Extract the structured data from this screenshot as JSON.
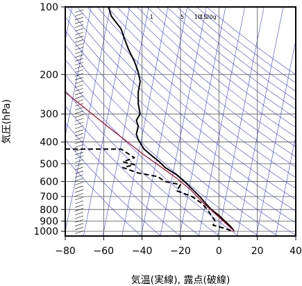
{
  "chart_data": {
    "type": "line",
    "title": "",
    "xlabel": "気温(実線), 露点(破線)",
    "ylabel": "気圧(hPa)",
    "xlim": [
      -80,
      40
    ],
    "ylim": [
      1050,
      100
    ],
    "y_scale": "log",
    "x_ticks": [
      -80,
      -60,
      -40,
      -20,
      0,
      20,
      40
    ],
    "x_tick_labels": [
      "−80",
      "−60",
      "−40",
      "−20",
      "0",
      "20",
      "40"
    ],
    "y_ticks": [
      100,
      200,
      300,
      400,
      500,
      600,
      700,
      800,
      900,
      1000
    ],
    "y_tick_labels": [
      "100",
      "200",
      "300",
      "400",
      "500",
      "600",
      "700",
      "800",
      "900",
      "1000"
    ],
    "mixing_ratio_labels": [
      "1",
      "5",
      "10",
      "15",
      "20g"
    ],
    "grid": true,
    "series": [
      {
        "style": "solid",
        "color": "#000000",
        "points": [
          {
            "t": -57.5,
            "p": 100
          },
          {
            "t": -56,
            "p": 110
          },
          {
            "t": -51,
            "p": 125
          },
          {
            "t": -49,
            "p": 140
          },
          {
            "t": -47,
            "p": 155
          },
          {
            "t": -44,
            "p": 175
          },
          {
            "t": -42,
            "p": 195
          },
          {
            "t": -41,
            "p": 215
          },
          {
            "t": -42,
            "p": 240
          },
          {
            "t": -42,
            "p": 270
          },
          {
            "t": -41,
            "p": 300
          },
          {
            "t": -43,
            "p": 320
          },
          {
            "t": -42,
            "p": 340
          },
          {
            "t": -43,
            "p": 370
          },
          {
            "t": -42,
            "p": 390
          },
          {
            "t": -39,
            "p": 430
          },
          {
            "t": -35,
            "p": 460
          },
          {
            "t": -31,
            "p": 490
          },
          {
            "t": -28,
            "p": 520
          },
          {
            "t": -22,
            "p": 560
          },
          {
            "t": -18,
            "p": 600
          },
          {
            "t": -13,
            "p": 660
          },
          {
            "t": -10,
            "p": 700
          },
          {
            "t": -7,
            "p": 750
          },
          {
            "t": -4,
            "p": 800
          },
          {
            "t": 0,
            "p": 850
          },
          {
            "t": 3,
            "p": 900
          },
          {
            "t": 6,
            "p": 950
          },
          {
            "t": 8,
            "p": 1000
          }
        ]
      },
      {
        "style": "dashed",
        "color": "#000000",
        "points": [
          {
            "t": -80,
            "p": 430
          },
          {
            "t": -51,
            "p": 430
          },
          {
            "t": -44,
            "p": 470
          },
          {
            "t": -50,
            "p": 490
          },
          {
            "t": -44,
            "p": 505
          },
          {
            "t": -50,
            "p": 520
          },
          {
            "t": -42,
            "p": 550
          },
          {
            "t": -32,
            "p": 570
          },
          {
            "t": -28,
            "p": 600
          },
          {
            "t": -20,
            "p": 620
          },
          {
            "t": -22,
            "p": 660
          },
          {
            "t": -14,
            "p": 700
          },
          {
            "t": -9,
            "p": 750
          },
          {
            "t": -6,
            "p": 800
          },
          {
            "t": -4,
            "p": 850
          },
          {
            "t": -2,
            "p": 900
          },
          {
            "t": -3,
            "p": 940
          },
          {
            "t": 3,
            "p": 970
          },
          {
            "t": 7,
            "p": 1000
          }
        ]
      },
      {
        "style": "solid",
        "color": "#aa1133",
        "points": [
          {
            "t": 8,
            "p": 1000
          },
          {
            "t": -1,
            "p": 850
          },
          {
            "t": -8,
            "p": 750
          },
          {
            "t": -15,
            "p": 650
          },
          {
            "t": -22,
            "p": 580
          },
          {
            "t": -40,
            "p": 450
          },
          {
            "t": -60,
            "p": 330
          },
          {
            "t": -80,
            "p": 240
          }
        ]
      }
    ]
  }
}
